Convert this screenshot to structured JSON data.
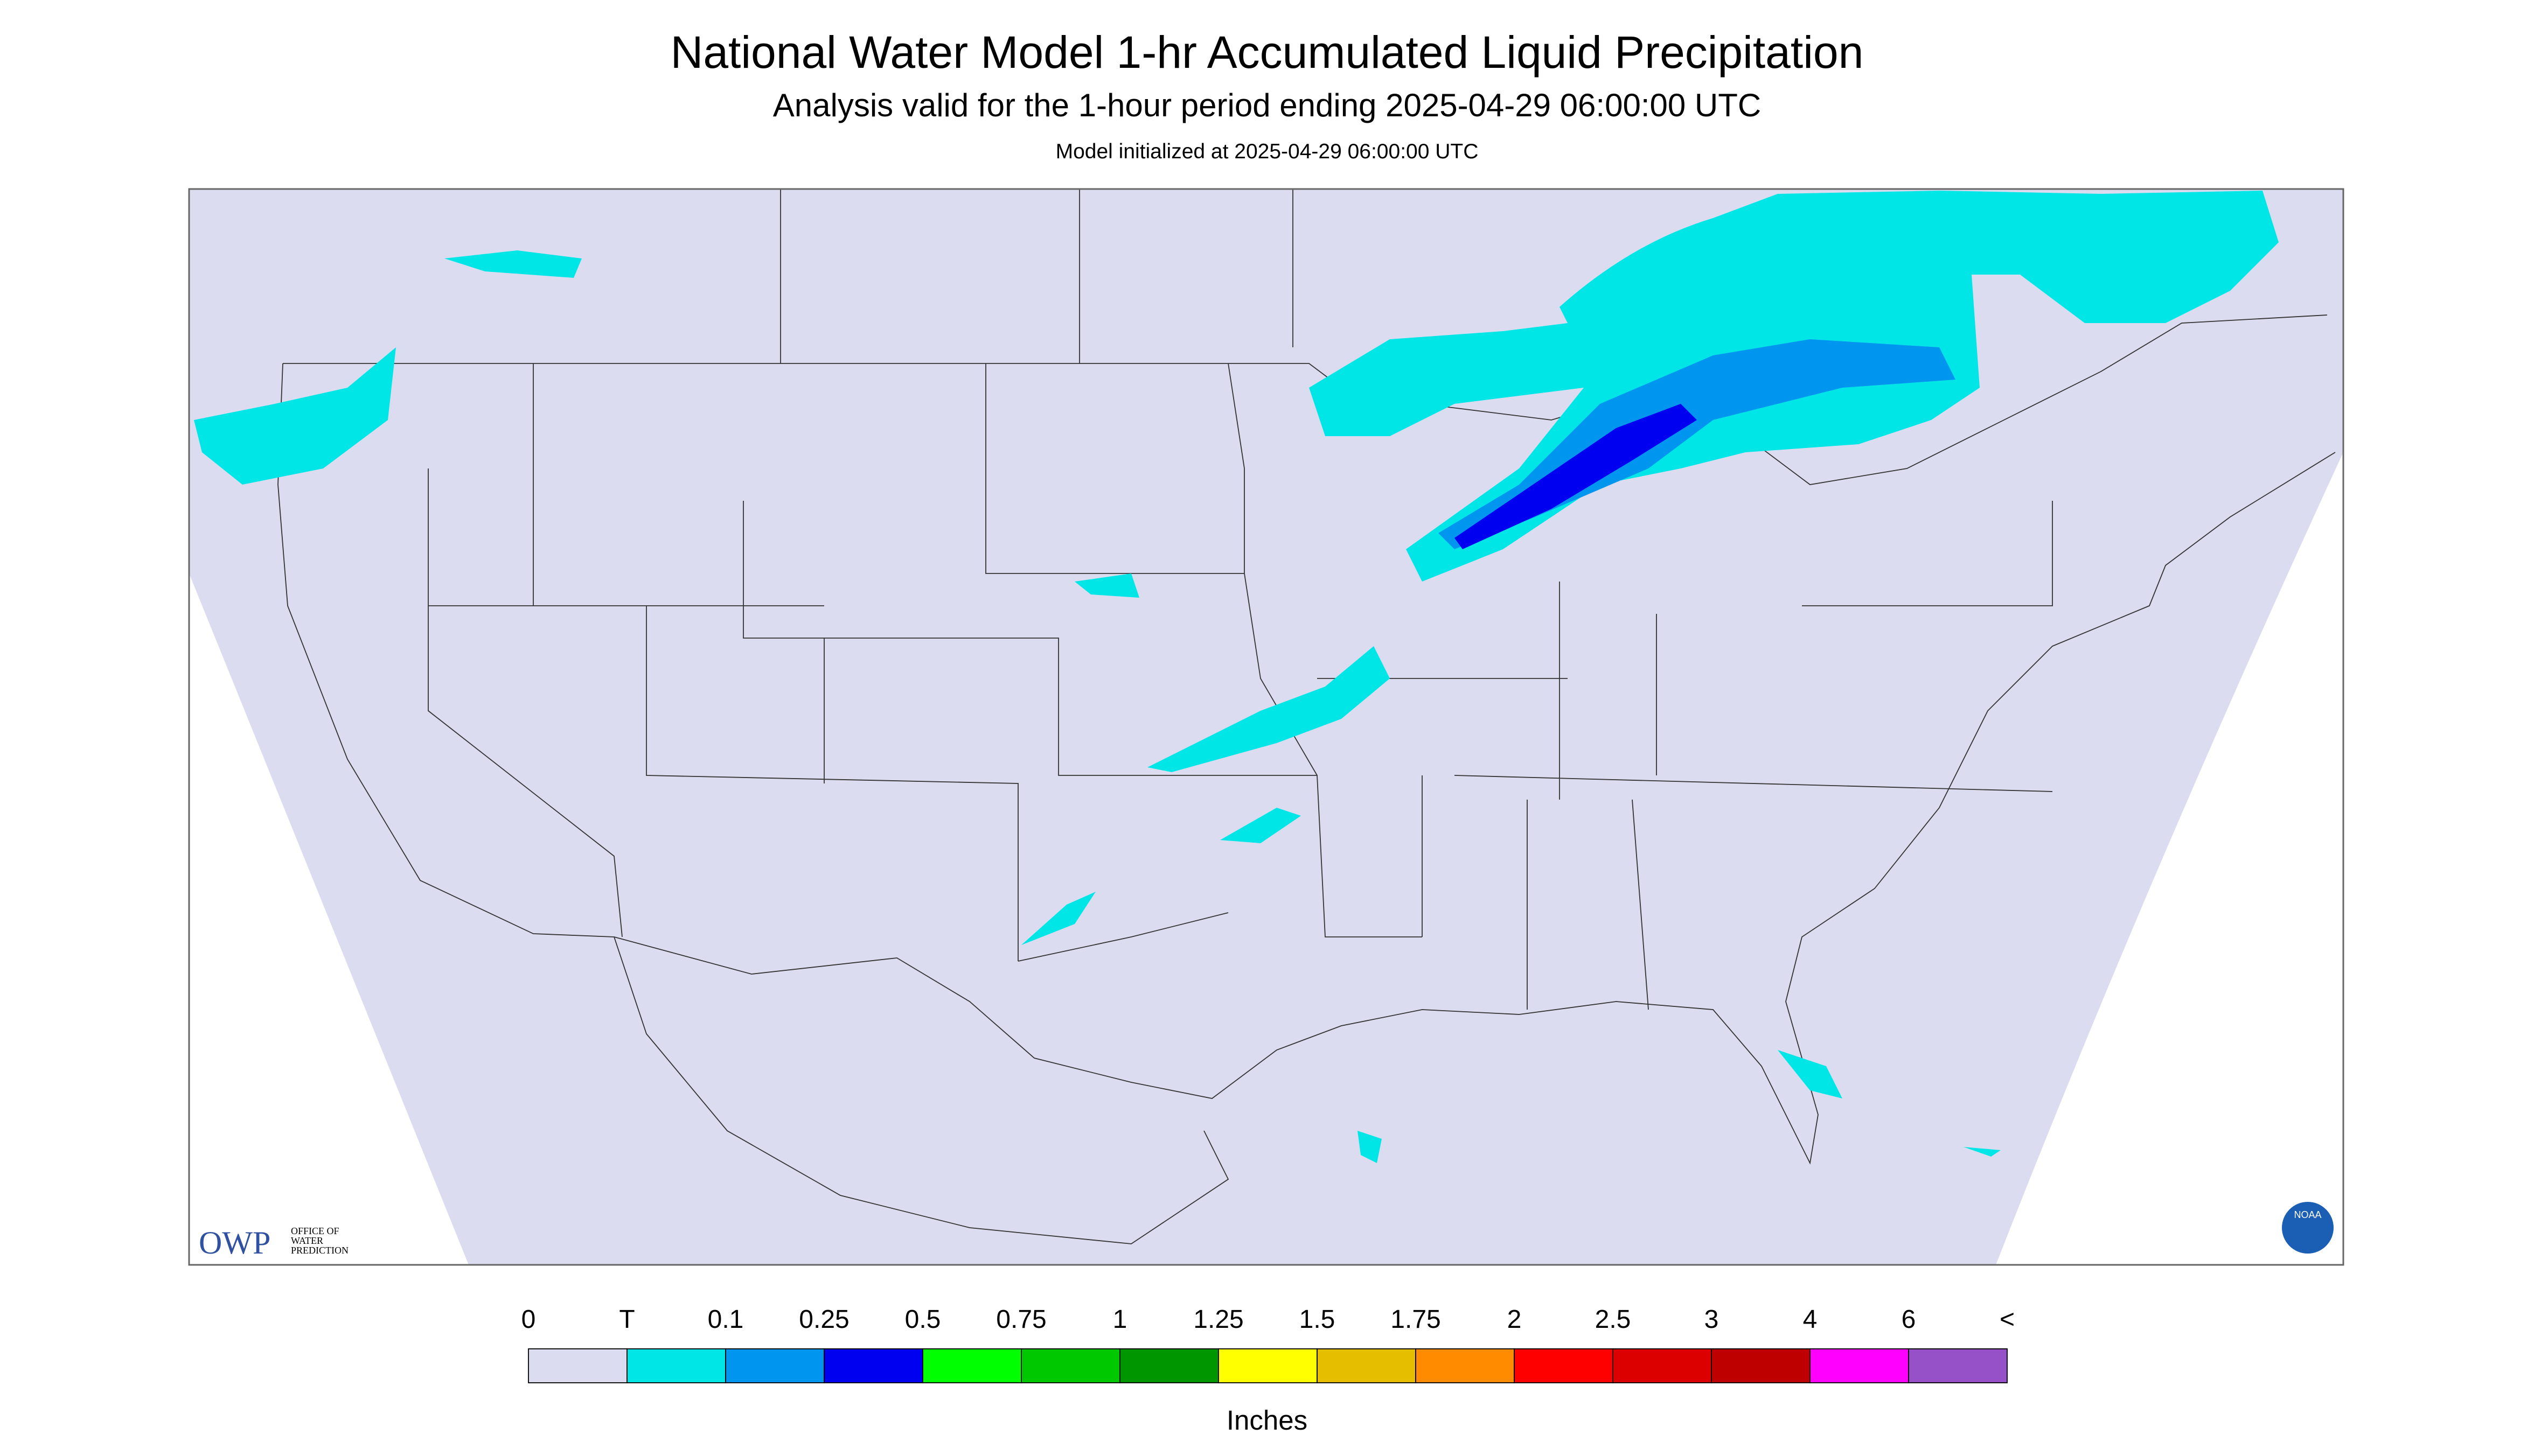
{
  "header": {
    "title": "National Water Model 1-hr Accumulated Liquid Precipitation",
    "subtitle": "Analysis valid for the 1-hour period ending 2025-04-29 06:00:00 UTC",
    "note": "Model initialized at 2025-04-29 06:00:00 UTC"
  },
  "logos": {
    "owp": "OWP",
    "owp_lines": [
      "OFFICE OF",
      "WATER",
      "PREDICTION"
    ],
    "noaa": "NOAA"
  },
  "legend": {
    "labels": [
      "0",
      "T",
      "0.1",
      "0.25",
      "0.5",
      "0.75",
      "1",
      "1.25",
      "1.5",
      "1.75",
      "2",
      "2.5",
      "3",
      "4",
      "6",
      "<"
    ],
    "colors": [
      "#dcdcf0",
      "#00e6e6",
      "#0096f0",
      "#0000f0",
      "#00ff00",
      "#00c800",
      "#009600",
      "#ffff00",
      "#e6be00",
      "#ff8c00",
      "#ff0000",
      "#dc0000",
      "#be0000",
      "#ff00ff",
      "#9650c8"
    ],
    "units": "Inches"
  }
}
